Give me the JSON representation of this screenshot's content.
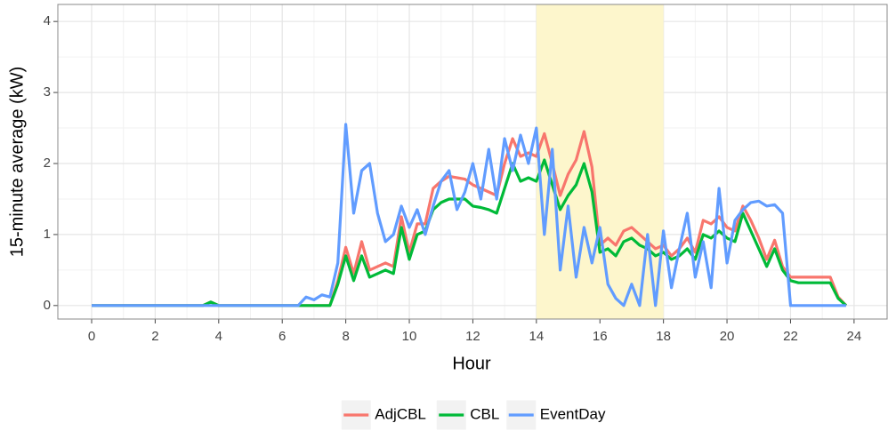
{
  "chart_data": {
    "type": "line",
    "xlabel": "Hour",
    "ylabel": "15-minute average (kW)",
    "xlim": [
      -1.064,
      25.04
    ],
    "ylim": [
      -0.19,
      4.24
    ],
    "xticks": [
      0,
      2,
      4,
      6,
      8,
      10,
      12,
      14,
      16,
      18,
      20,
      22,
      24
    ],
    "yticks": [
      0,
      1,
      2,
      3,
      4
    ],
    "grid": true,
    "legend": "bottom",
    "shaded_range": [
      14,
      18
    ],
    "shade_color": "#fdf6cc",
    "x": [
      0,
      3.5,
      3.75,
      4,
      6.5,
      6.75,
      7,
      7.25,
      7.5,
      7.75,
      8,
      8.25,
      8.5,
      8.75,
      9,
      9.25,
      9.5,
      9.75,
      10,
      10.25,
      10.5,
      10.75,
      11,
      11.25,
      11.5,
      11.75,
      12,
      12.25,
      12.5,
      12.75,
      13,
      13.25,
      13.5,
      13.75,
      14,
      14.25,
      14.5,
      14.75,
      15,
      15.25,
      15.5,
      15.75,
      16,
      16.25,
      16.5,
      16.75,
      17,
      17.25,
      17.5,
      17.75,
      18,
      18.25,
      18.5,
      18.75,
      19,
      19.25,
      19.5,
      19.75,
      20,
      20.25,
      20.5,
      20.75,
      21,
      21.25,
      21.5,
      21.75,
      22,
      22.25,
      22.5,
      22.75,
      23,
      23.25,
      23.5,
      23.75
    ],
    "series": [
      {
        "name": "AdjCBL",
        "color": "#F8766D",
        "values": [
          0,
          0,
          0.05,
          0,
          0,
          0,
          0,
          0,
          0,
          0.35,
          0.82,
          0.45,
          0.9,
          0.5,
          0.55,
          0.6,
          0.55,
          1.25,
          0.75,
          1.15,
          1.15,
          1.65,
          1.75,
          1.82,
          1.8,
          1.78,
          1.7,
          1.65,
          1.6,
          1.55,
          2.0,
          2.35,
          2.1,
          2.15,
          2.1,
          2.42,
          2.0,
          1.55,
          1.85,
          2.05,
          2.45,
          1.95,
          0.85,
          0.95,
          0.85,
          1.05,
          1.1,
          1.0,
          0.9,
          0.8,
          0.85,
          0.7,
          0.8,
          0.95,
          0.75,
          1.2,
          1.15,
          1.25,
          1.1,
          1.05,
          1.4,
          1.2,
          0.95,
          0.65,
          0.92,
          0.55,
          0.4,
          0.4,
          0.4,
          0.4,
          0.4,
          0.4,
          0.12,
          0
        ]
      },
      {
        "name": "CBL",
        "color": "#00BA38",
        "values": [
          0,
          0,
          0.05,
          0,
          0,
          0,
          0,
          0,
          0,
          0.3,
          0.7,
          0.35,
          0.7,
          0.4,
          0.45,
          0.5,
          0.45,
          1.1,
          0.65,
          1.0,
          1.05,
          1.35,
          1.45,
          1.5,
          1.5,
          1.5,
          1.4,
          1.38,
          1.35,
          1.3,
          1.65,
          2.0,
          1.75,
          1.8,
          1.75,
          2.05,
          1.7,
          1.35,
          1.55,
          1.7,
          2.0,
          1.6,
          0.75,
          0.8,
          0.7,
          0.9,
          0.95,
          0.85,
          0.8,
          0.7,
          0.75,
          0.65,
          0.7,
          0.8,
          0.65,
          1.0,
          0.95,
          1.05,
          0.95,
          0.9,
          1.3,
          1.05,
          0.8,
          0.55,
          0.8,
          0.5,
          0.35,
          0.32,
          0.32,
          0.32,
          0.32,
          0.32,
          0.1,
          0
        ]
      },
      {
        "name": "EventDay",
        "color": "#619CFF",
        "values": [
          0,
          0,
          0,
          0,
          0,
          0.12,
          0.08,
          0.15,
          0.12,
          0.6,
          2.55,
          1.3,
          1.9,
          2.0,
          1.3,
          0.9,
          1.0,
          1.4,
          1.1,
          1.35,
          1.0,
          1.4,
          1.75,
          1.9,
          1.35,
          1.6,
          2.0,
          1.5,
          2.2,
          1.5,
          2.35,
          1.9,
          2.4,
          2.0,
          2.5,
          1.0,
          2.2,
          0.5,
          1.4,
          0.4,
          1.1,
          0.6,
          1.1,
          0.3,
          0.1,
          0,
          0.3,
          0,
          1.0,
          0,
          1.05,
          0.25,
          0.8,
          1.3,
          0.4,
          0.9,
          0.25,
          1.65,
          0.6,
          1.2,
          1.35,
          1.45,
          1.47,
          1.4,
          1.42,
          1.3,
          0,
          0,
          0,
          0,
          0,
          0,
          0,
          0
        ]
      }
    ]
  }
}
